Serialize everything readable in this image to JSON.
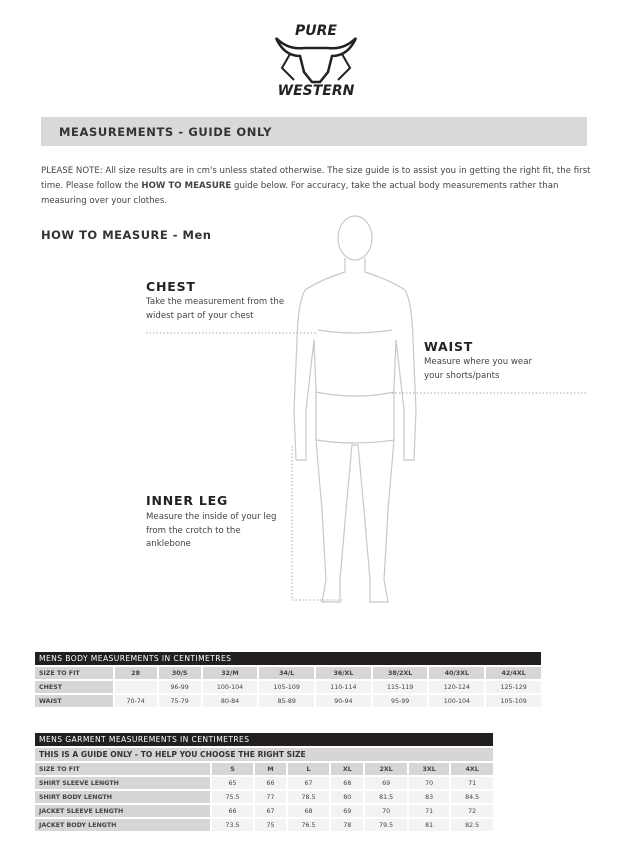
{
  "logo": {
    "top": "PURE",
    "bottom": "WESTERN"
  },
  "header": {
    "title": "MEASUREMENTS - GUIDE ONLY"
  },
  "note": {
    "prefix": "PLEASE NOTE:  All size results are in cm's unless stated otherwise. The size guide is to assist you in getting the right fit, the first time. Please follow the ",
    "bold": "HOW TO MEASURE",
    "suffix": " guide below. For accuracy, take the actual body measurements rather than measuring over your clothes."
  },
  "how_to": {
    "title": "HOW TO MEASURE - Men",
    "chest": {
      "label": "CHEST",
      "desc": "Take the measurement from the widest part of your chest"
    },
    "waist": {
      "label": "WAIST",
      "desc": "Measure where you wear your shorts/pants"
    },
    "inner_leg": {
      "label": "INNER LEG",
      "desc": "Measure the inside of your leg from the crotch to the anklebone"
    }
  },
  "body_table": {
    "title": "MENS BODY MEASUREMENTS IN CENTIMETRES",
    "headers": [
      "SIZE TO FIT",
      "28",
      "30/S",
      "32/M",
      "34/L",
      "36/XL",
      "38/2XL",
      "40/3XL",
      "42/4XL"
    ],
    "rows": [
      [
        "CHEST",
        "",
        "96-99",
        "100-104",
        "105-109",
        "110-114",
        "115-119",
        "120-124",
        "125-129"
      ],
      [
        "WAIST",
        "70-74",
        "75-79",
        "80-84",
        "85-89",
        "90-94",
        "95-99",
        "100-104",
        "105-109"
      ]
    ]
  },
  "garment_table": {
    "title": "MENS GARMENT MEASUREMENTS IN CENTIMETRES",
    "subtitle": "THIS IS A GUIDE ONLY - TO HELP YOU CHOOSE THE RIGHT SIZE",
    "headers": [
      "SIZE TO FIT",
      "S",
      "M",
      "L",
      "XL",
      "2XL",
      "3XL",
      "4XL"
    ],
    "rows": [
      [
        "SHIRT SLEEVE LENGTH",
        "65",
        "66",
        "67",
        "68",
        "69",
        "70",
        "71"
      ],
      [
        "SHIRT BODY LENGTH",
        "75.5",
        "77",
        "78.5",
        "80",
        "81.5",
        "83",
        "84.5"
      ],
      [
        "JACKET SLEEVE LENGTH",
        "66",
        "67",
        "68",
        "69",
        "70",
        "71",
        "72"
      ],
      [
        "JACKET BODY LENGTH",
        "73.5",
        "75",
        "76.5",
        "78",
        "79.5",
        "81",
        "82.5"
      ]
    ]
  }
}
